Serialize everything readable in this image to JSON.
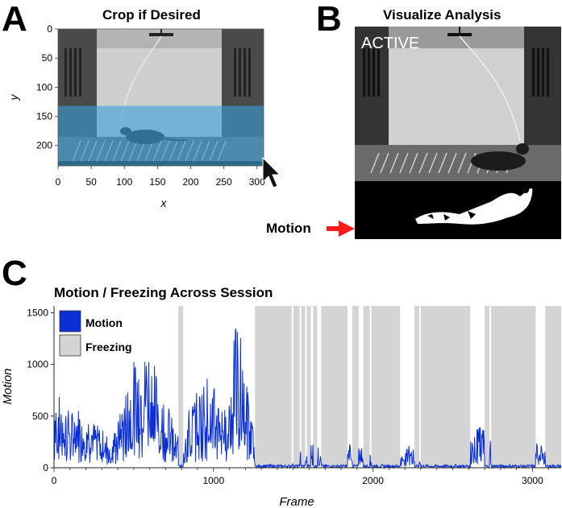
{
  "panel_a": {
    "letter": "A",
    "title": "Crop if Desired",
    "xlabel": "x",
    "ylabel": "y",
    "x_ticks": [
      0,
      50,
      100,
      150,
      200,
      250,
      300
    ],
    "y_ticks": [
      0,
      50,
      100,
      150,
      200
    ],
    "xlim": [
      0,
      310
    ],
    "ylim": [
      0,
      235
    ],
    "crop_region_y": [
      132,
      235
    ],
    "crop_color": "#3a9fd8"
  },
  "panel_b": {
    "letter": "B",
    "title": "Visualize Analysis",
    "overlay_label": "ACTIVE",
    "motion_label": "Motion",
    "arrow_color": "#ff1a1a"
  },
  "panel_c": {
    "letter": "C",
    "chart_data": {
      "type": "line",
      "title": "Motion / Freezing Across Session",
      "xlabel": "Frame",
      "ylabel": "Motion",
      "xlim": [
        0,
        3180
      ],
      "ylim": [
        0,
        1550
      ],
      "x_ticks": [
        0,
        1000,
        2000,
        3000
      ],
      "y_ticks": [
        0,
        500,
        1000,
        1500
      ],
      "legend_position": "top-left",
      "series": [
        {
          "name": "Motion",
          "color": "#0a2fd6"
        },
        {
          "name": "Freezing",
          "color": "#d4d4d4"
        }
      ],
      "motion_envelope": [
        [
          0,
          800
        ],
        [
          40,
          700
        ],
        [
          100,
          550
        ],
        [
          180,
          620
        ],
        [
          250,
          450
        ],
        [
          300,
          380
        ],
        [
          360,
          280
        ],
        [
          420,
          560
        ],
        [
          470,
          900
        ],
        [
          520,
          1150
        ],
        [
          560,
          1050
        ],
        [
          590,
          1250
        ],
        [
          640,
          950
        ],
        [
          700,
          700
        ],
        [
          760,
          380
        ],
        [
          800,
          320
        ],
        [
          850,
          600
        ],
        [
          900,
          750
        ],
        [
          960,
          900
        ],
        [
          1000,
          800
        ],
        [
          1040,
          700
        ],
        [
          1080,
          550
        ],
        [
          1120,
          1200
        ],
        [
          1150,
          1450
        ],
        [
          1180,
          1300
        ],
        [
          1220,
          700
        ],
        [
          1260,
          250
        ],
        [
          1300,
          60
        ],
        [
          1400,
          50
        ],
        [
          1480,
          120
        ],
        [
          1560,
          180
        ],
        [
          1620,
          260
        ],
        [
          1700,
          120
        ],
        [
          1820,
          80
        ],
        [
          1860,
          300
        ],
        [
          1920,
          220
        ],
        [
          2000,
          100
        ],
        [
          2100,
          60
        ],
        [
          2200,
          140
        ],
        [
          2240,
          280
        ],
        [
          2300,
          70
        ],
        [
          2420,
          60
        ],
        [
          2560,
          50
        ],
        [
          2620,
          330
        ],
        [
          2680,
          420
        ],
        [
          2740,
          300
        ],
        [
          2800,
          40
        ],
        [
          2960,
          60
        ],
        [
          3020,
          250
        ],
        [
          3100,
          200
        ],
        [
          3180,
          60
        ]
      ],
      "freezing_intervals": [
        [
          780,
          810
        ],
        [
          1260,
          1490
        ],
        [
          1500,
          1540
        ],
        [
          1550,
          1575
        ],
        [
          1585,
          1610
        ],
        [
          1625,
          1650
        ],
        [
          1675,
          1840
        ],
        [
          1870,
          1910
        ],
        [
          1940,
          1980
        ],
        [
          1990,
          2170
        ],
        [
          2260,
          2290
        ],
        [
          2300,
          2610
        ],
        [
          2700,
          2730
        ],
        [
          2740,
          3020
        ],
        [
          3080,
          3180
        ]
      ]
    }
  }
}
